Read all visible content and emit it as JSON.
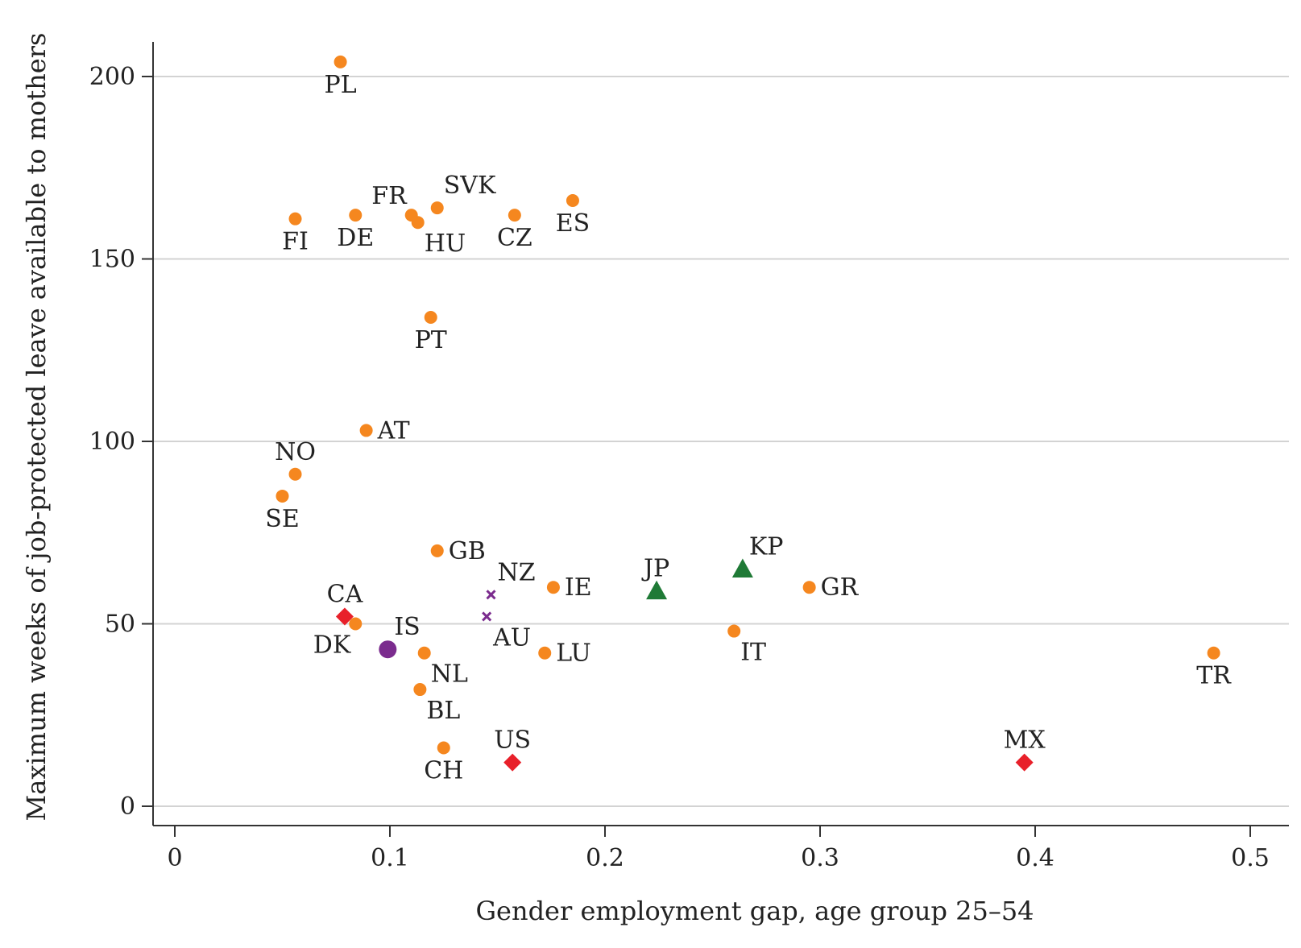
{
  "chart_data": {
    "type": "scatter",
    "title": "",
    "xlabel": "Gender employment gap, age group 25–54",
    "ylabel": "Maximum weeks of job-protected leave available to mothers",
    "xlim": [
      -0.008,
      0.51
    ],
    "ylim": [
      -6,
      210
    ],
    "x_ticks": [
      0,
      0.1,
      0.2,
      0.3,
      0.4,
      0.5
    ],
    "x_tick_labels": [
      "0",
      "0.1",
      "0.2",
      "0.3",
      "0.4",
      "0.5"
    ],
    "y_ticks": [
      0,
      50,
      100,
      150,
      200
    ],
    "y_tick_labels": [
      "0",
      "50",
      "100",
      "150",
      "200"
    ],
    "grid": "horizontal",
    "legend": "none",
    "colors": {
      "orange": "#f5871f",
      "red": "#e8202a",
      "purple": "#7b2c8e",
      "green": "#1f7a36"
    },
    "points": [
      {
        "label": "PL",
        "x": 0.077,
        "y": 204,
        "marker": "circle",
        "color": "orange",
        "label_pos": "below"
      },
      {
        "label": "FI",
        "x": 0.056,
        "y": 161,
        "marker": "circle",
        "color": "orange",
        "label_pos": "below"
      },
      {
        "label": "DE",
        "x": 0.084,
        "y": 162,
        "marker": "circle",
        "color": "orange",
        "label_pos": "below"
      },
      {
        "label": "FR",
        "x": 0.11,
        "y": 162,
        "marker": "circle",
        "color": "orange",
        "label_pos": "above-left"
      },
      {
        "label": "HU",
        "x": 0.113,
        "y": 160,
        "marker": "circle",
        "color": "orange",
        "label_pos": "below-right"
      },
      {
        "label": "SVK",
        "x": 0.122,
        "y": 164,
        "marker": "circle",
        "color": "orange",
        "label_pos": "above-right"
      },
      {
        "label": "CZ",
        "x": 0.158,
        "y": 162,
        "marker": "circle",
        "color": "orange",
        "label_pos": "below"
      },
      {
        "label": "ES",
        "x": 0.185,
        "y": 166,
        "marker": "circle",
        "color": "orange",
        "label_pos": "below"
      },
      {
        "label": "PT",
        "x": 0.119,
        "y": 134,
        "marker": "circle",
        "color": "orange",
        "label_pos": "below"
      },
      {
        "label": "AT",
        "x": 0.089,
        "y": 103,
        "marker": "circle",
        "color": "orange",
        "label_pos": "right"
      },
      {
        "label": "NO",
        "x": 0.056,
        "y": 91,
        "marker": "circle",
        "color": "orange",
        "label_pos": "above"
      },
      {
        "label": "SE",
        "x": 0.05,
        "y": 85,
        "marker": "circle",
        "color": "orange",
        "label_pos": "below"
      },
      {
        "label": "GB",
        "x": 0.122,
        "y": 70,
        "marker": "circle",
        "color": "orange",
        "label_pos": "right"
      },
      {
        "label": "NZ",
        "x": 0.147,
        "y": 58,
        "marker": "x",
        "color": "purple",
        "label_pos": "above-right"
      },
      {
        "label": "AU",
        "x": 0.145,
        "y": 52,
        "marker": "x",
        "color": "purple",
        "label_pos": "below-right"
      },
      {
        "label": "IE",
        "x": 0.176,
        "y": 60,
        "marker": "circle",
        "color": "orange",
        "label_pos": "right"
      },
      {
        "label": "JP",
        "x": 0.224,
        "y": 59,
        "marker": "triangle",
        "color": "green",
        "label_pos": "above"
      },
      {
        "label": "KP",
        "x": 0.264,
        "y": 65,
        "marker": "triangle",
        "color": "green",
        "label_pos": "above-right"
      },
      {
        "label": "GR",
        "x": 0.295,
        "y": 60,
        "marker": "circle",
        "color": "orange",
        "label_pos": "right"
      },
      {
        "label": "CA",
        "x": 0.079,
        "y": 52,
        "marker": "diamond",
        "color": "red",
        "label_pos": "above"
      },
      {
        "label": "DK",
        "x": 0.084,
        "y": 50,
        "marker": "circle",
        "color": "orange",
        "label_pos": "below-left"
      },
      {
        "label": "IS",
        "x": 0.099,
        "y": 43,
        "marker": "bigcircle",
        "color": "purple",
        "label_pos": "above-right"
      },
      {
        "label": "NL",
        "x": 0.116,
        "y": 42,
        "marker": "circle",
        "color": "orange",
        "label_pos": "below-right"
      },
      {
        "label": "LU",
        "x": 0.172,
        "y": 42,
        "marker": "circle",
        "color": "orange",
        "label_pos": "right"
      },
      {
        "label": "IT",
        "x": 0.26,
        "y": 48,
        "marker": "circle",
        "color": "orange",
        "label_pos": "below-right"
      },
      {
        "label": "TR",
        "x": 0.483,
        "y": 42,
        "marker": "circle",
        "color": "orange",
        "label_pos": "below"
      },
      {
        "label": "BL",
        "x": 0.114,
        "y": 32,
        "marker": "circle",
        "color": "orange",
        "label_pos": "below-right"
      },
      {
        "label": "CH",
        "x": 0.125,
        "y": 16,
        "marker": "circle",
        "color": "orange",
        "label_pos": "below"
      },
      {
        "label": "US",
        "x": 0.157,
        "y": 12,
        "marker": "diamond",
        "color": "red",
        "label_pos": "above"
      },
      {
        "label": "MX",
        "x": 0.395,
        "y": 12,
        "marker": "diamond",
        "color": "red",
        "label_pos": "above"
      }
    ]
  }
}
